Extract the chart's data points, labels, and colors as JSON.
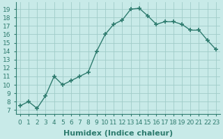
{
  "x": [
    0,
    1,
    2,
    3,
    4,
    5,
    6,
    7,
    8,
    9,
    10,
    11,
    12,
    13,
    14,
    15,
    16,
    17,
    18,
    19,
    20,
    21,
    22,
    23
  ],
  "y": [
    7.5,
    8.0,
    7.2,
    8.7,
    11.0,
    10.0,
    10.5,
    11.0,
    11.5,
    14.0,
    16.0,
    17.2,
    17.7,
    19.0,
    19.1,
    18.2,
    17.2,
    17.5,
    17.5,
    17.2,
    16.5,
    16.5,
    15.3,
    14.2
  ],
  "line_color": "#2e7b6e",
  "marker": "+",
  "marker_size": 5,
  "marker_linewidth": 1.2,
  "line_width": 1.0,
  "bg_color": "#c8eae8",
  "grid_color": "#a0ccc8",
  "xlabel": "Humidex (Indice chaleur)",
  "xlabel_fontsize": 8,
  "ylabel_ticks": [
    7,
    8,
    9,
    10,
    11,
    12,
    13,
    14,
    15,
    16,
    17,
    18,
    19
  ],
  "ylim": [
    6.5,
    19.8
  ],
  "xlim": [
    -0.5,
    23.5
  ],
  "xtick_labels": [
    "0",
    "1",
    "2",
    "3",
    "4",
    "5",
    "6",
    "7",
    "8",
    "9",
    "10",
    "11",
    "12",
    "13",
    "14",
    "15",
    "16",
    "17",
    "18",
    "19",
    "20",
    "21",
    "22",
    "23"
  ],
  "tick_fontsize": 6.5,
  "tick_color": "#2e7b6e",
  "spine_color": "#2e7b6e"
}
